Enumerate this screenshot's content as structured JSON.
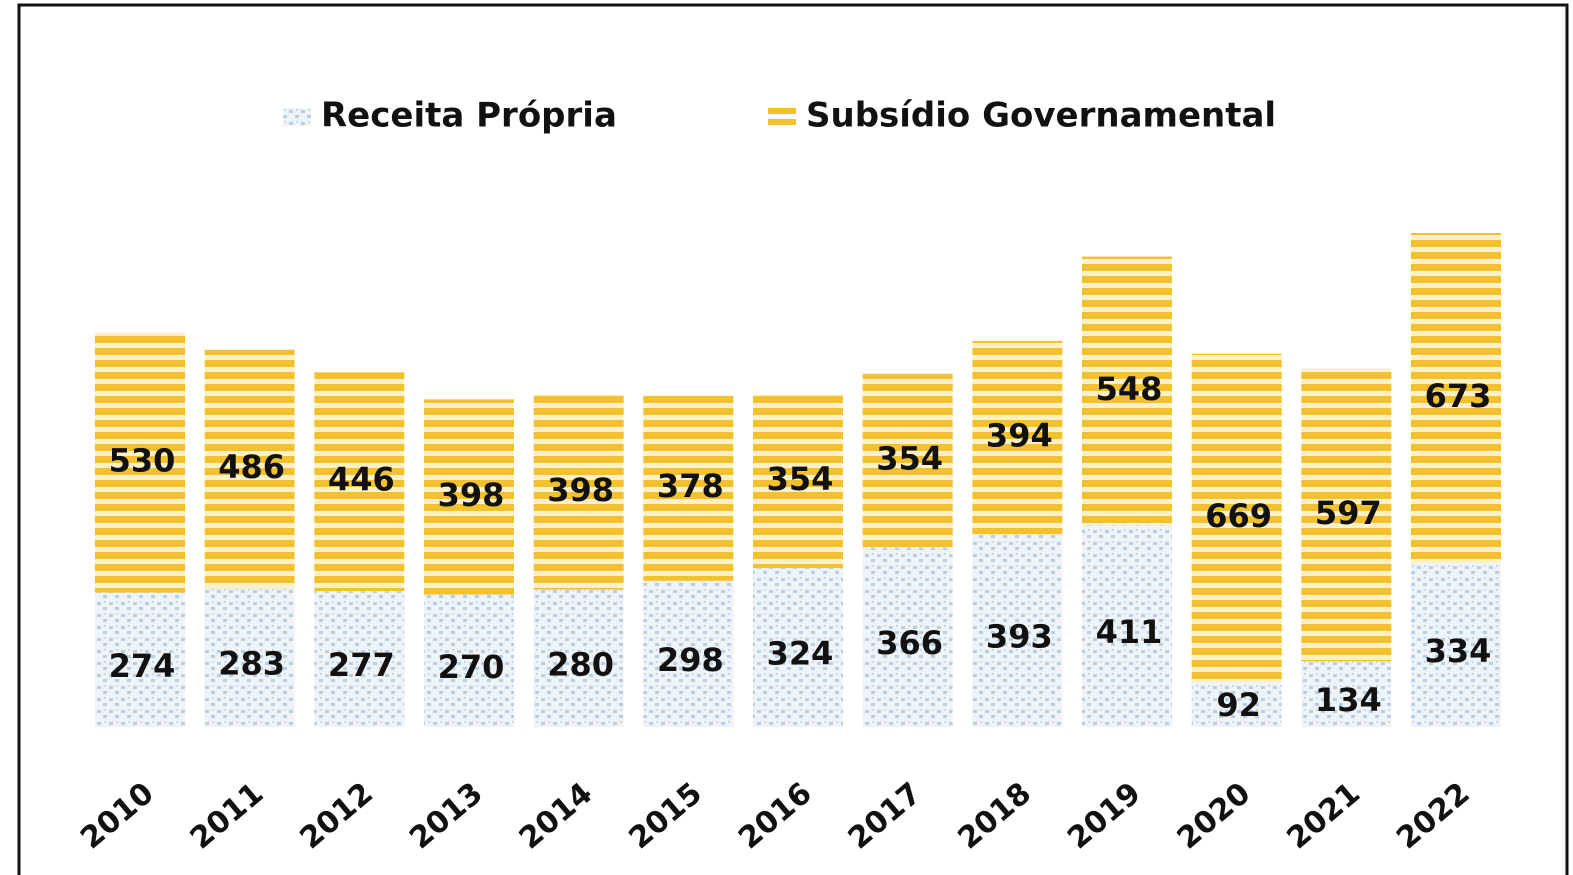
{
  "chart_data": {
    "type": "stacked-bar",
    "categories": [
      "2010",
      "2011",
      "2012",
      "2013",
      "2014",
      "2015",
      "2016",
      "2017",
      "2018",
      "2019",
      "2020",
      "2021",
      "2022"
    ],
    "series": [
      {
        "name": "Receita Própria",
        "color": "#b8cfe3",
        "values": [
          274,
          283,
          277,
          270,
          280,
          298,
          324,
          366,
          393,
          411,
          92,
          134,
          334
        ]
      },
      {
        "name": "Subsídio Governamental",
        "color": "#f2c12e",
        "values": [
          530,
          486,
          446,
          398,
          398,
          378,
          354,
          354,
          394,
          548,
          669,
          597,
          673
        ]
      }
    ]
  }
}
